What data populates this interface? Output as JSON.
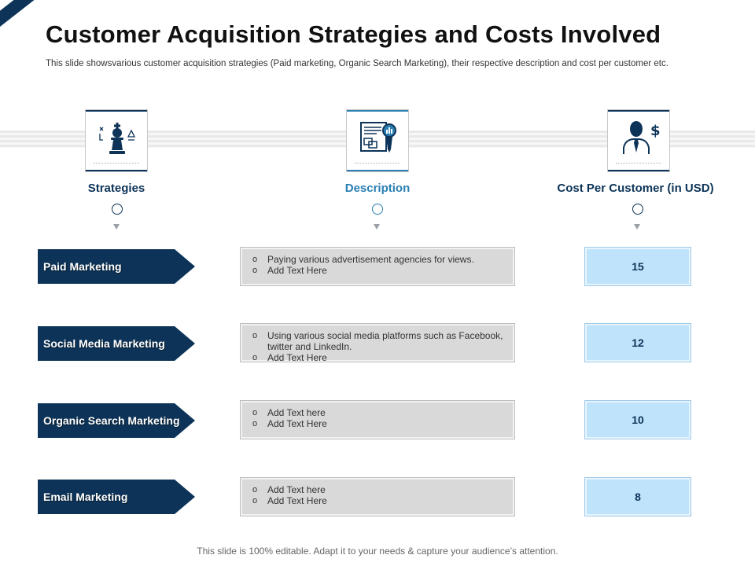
{
  "title": "Customer Acquisition Strategies and Costs Involved",
  "subtitle": "This slide showsvarious customer acquisition strategies (Paid marketing, Organic Search Marketing), their respective description and cost per customer etc.",
  "columns": {
    "strategies": {
      "label": "Strategies",
      "icon": "chess-strategy-icon"
    },
    "description": {
      "label": "Description",
      "icon": "report-magnifier-icon"
    },
    "cost": {
      "label": "Cost Per Customer (in USD)",
      "icon": "businessman-dollar-icon"
    }
  },
  "rows": [
    {
      "strategy": "Paid  Marketing",
      "desc": [
        "Paying various advertisement agencies for views.",
        "Add Text Here"
      ],
      "cost": "15"
    },
    {
      "strategy": "Social Media Marketing",
      "desc": [
        "Using various social media platforms such as Facebook, twitter and LinkedIn.",
        "Add Text Here"
      ],
      "cost": "12"
    },
    {
      "strategy": "Organic Search Marketing",
      "desc": [
        "Add Text here",
        "Add Text Here"
      ],
      "cost": "10"
    },
    {
      "strategy": "Email Marketing",
      "desc": [
        "Add Text here",
        "Add Text Here"
      ],
      "cost": "8"
    }
  ],
  "footer": "This slide is 100% editable. Adapt it to your needs & capture your audience’s attention.",
  "colors": {
    "navy": "#0d3458",
    "accent_blue": "#2a7fb3",
    "cost_fill": "#bfe3fb",
    "desc_fill": "#d9d9d9"
  }
}
